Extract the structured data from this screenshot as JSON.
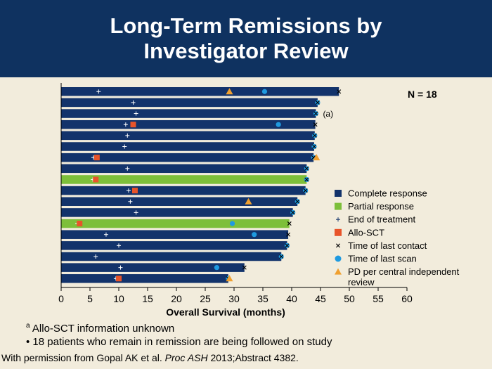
{
  "header": {
    "title": "Long-Term Remissions by\nInvestigator Review"
  },
  "colors": {
    "header_bg": "#0f3260",
    "background": "#f2ecdc",
    "complete_response": "#13336b",
    "partial_response": "#7dbf3a",
    "end_of_treatment": "#ffffff",
    "allo_sct": "#e8542a",
    "last_contact": "#000000",
    "last_scan": "#1f9ae0",
    "pd": "#f0a030"
  },
  "chart_data": {
    "type": "swimmer",
    "n_label": "N = 18",
    "xlabel": "Overall Survival (months)",
    "xlim": [
      0,
      60
    ],
    "xticks": [
      0,
      5,
      10,
      15,
      20,
      25,
      30,
      35,
      40,
      45,
      50,
      55,
      60
    ],
    "grid": false,
    "legend_position": "right",
    "legend": [
      {
        "key": "complete_response",
        "label": "Complete response",
        "symbol": "square"
      },
      {
        "key": "partial_response",
        "label": "Partial response",
        "symbol": "square"
      },
      {
        "key": "end_of_treatment",
        "label": "End of treatment",
        "symbol": "plus"
      },
      {
        "key": "allo_sct",
        "label": "Allo-SCT",
        "symbol": "square"
      },
      {
        "key": "last_contact",
        "label": "Time of last contact",
        "symbol": "x"
      },
      {
        "key": "last_scan",
        "label": "Time of last scan",
        "symbol": "circle"
      },
      {
        "key": "pd",
        "label": "PD per central independent review",
        "symbol": "triangle"
      }
    ],
    "patients": [
      {
        "response": "complete",
        "duration": 48.2,
        "end_of_treatment": 6.5,
        "allo_sct": null,
        "last_contact": 48.2,
        "last_scan": 35.3,
        "pd": 29.2,
        "note": ""
      },
      {
        "response": "complete",
        "duration": 44.5,
        "end_of_treatment": 12.5,
        "allo_sct": null,
        "last_contact": 44.5,
        "last_scan": 44.5,
        "pd": null,
        "note": ""
      },
      {
        "response": "complete",
        "duration": 44.2,
        "end_of_treatment": 13.0,
        "allo_sct": null,
        "last_contact": 44.2,
        "last_scan": 44.2,
        "pd": null,
        "note": "(a)"
      },
      {
        "response": "complete",
        "duration": 44.1,
        "end_of_treatment": 11.2,
        "allo_sct": 12.5,
        "last_contact": 44.1,
        "last_scan": 37.7,
        "pd": null,
        "note": ""
      },
      {
        "response": "complete",
        "duration": 44.0,
        "end_of_treatment": 11.5,
        "allo_sct": null,
        "last_contact": 44.0,
        "last_scan": 44.0,
        "pd": null,
        "note": ""
      },
      {
        "response": "complete",
        "duration": 43.9,
        "end_of_treatment": 11.0,
        "allo_sct": null,
        "last_contact": 43.9,
        "last_scan": 43.9,
        "pd": null,
        "note": ""
      },
      {
        "response": "complete",
        "duration": 43.8,
        "end_of_treatment": 5.6,
        "allo_sct": 6.2,
        "last_contact": 43.8,
        "last_scan": 43.8,
        "pd": 44.3,
        "note": ""
      },
      {
        "response": "complete",
        "duration": 42.6,
        "end_of_treatment": 11.5,
        "allo_sct": null,
        "last_contact": 42.6,
        "last_scan": 42.6,
        "pd": null,
        "note": ""
      },
      {
        "response": "partial",
        "duration": 42.6,
        "end_of_treatment": 5.5,
        "allo_sct": 6.0,
        "last_contact": 42.6,
        "last_scan": 42.6,
        "pd": null,
        "note": ""
      },
      {
        "response": "complete",
        "duration": 42.4,
        "end_of_treatment": 11.7,
        "allo_sct": 12.8,
        "last_contact": 42.4,
        "last_scan": 42.4,
        "pd": null,
        "note": ""
      },
      {
        "response": "complete",
        "duration": 41.0,
        "end_of_treatment": 12.0,
        "allo_sct": null,
        "last_contact": 41.0,
        "last_scan": 41.0,
        "pd": 32.5,
        "note": ""
      },
      {
        "response": "complete",
        "duration": 40.2,
        "end_of_treatment": 13.0,
        "allo_sct": null,
        "last_contact": 40.2,
        "last_scan": 40.2,
        "pd": null,
        "note": ""
      },
      {
        "response": "partial",
        "duration": 39.6,
        "end_of_treatment": 2.8,
        "allo_sct": 3.2,
        "last_contact": 39.6,
        "last_scan": 29.7,
        "pd": null,
        "note": ""
      },
      {
        "response": "complete",
        "duration": 39.4,
        "end_of_treatment": 7.8,
        "allo_sct": null,
        "last_contact": 39.4,
        "last_scan": 33.5,
        "pd": null,
        "note": ""
      },
      {
        "response": "complete",
        "duration": 39.2,
        "end_of_treatment": 10.0,
        "allo_sct": null,
        "last_contact": 39.2,
        "last_scan": 39.2,
        "pd": null,
        "note": ""
      },
      {
        "response": "complete",
        "duration": 38.2,
        "end_of_treatment": 6.0,
        "allo_sct": null,
        "last_contact": 38.2,
        "last_scan": 38.2,
        "pd": null,
        "note": ""
      },
      {
        "response": "complete",
        "duration": 31.8,
        "end_of_treatment": 10.3,
        "allo_sct": null,
        "last_contact": 31.8,
        "last_scan": 27.0,
        "pd": null,
        "note": ""
      },
      {
        "response": "complete",
        "duration": 29.0,
        "end_of_treatment": 9.5,
        "allo_sct": 10.0,
        "last_contact": 29.0,
        "last_scan": 29.0,
        "pd": 29.2,
        "note": ""
      }
    ]
  },
  "footnotes": {
    "a_marker": "a",
    "a_text": "Allo-SCT information unknown",
    "bullet": "• 18 patients who remain in remission are being followed on study",
    "citation_pre": "With permission from Gopal AK et al. ",
    "citation_em": "Proc ASH",
    "citation_post": " 2013;Abstract 4382."
  }
}
